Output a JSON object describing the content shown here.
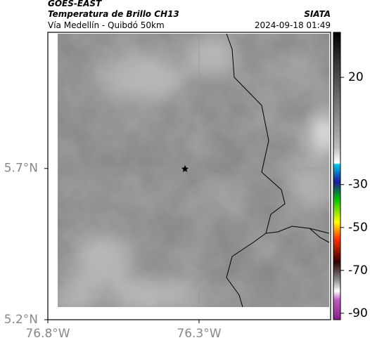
{
  "header": {
    "title": "GOES-EAST",
    "subtitle": "Temperatura de Brillo CH13",
    "route": "Vía Medellín - Quibdó 50km",
    "source": "SIATA",
    "timestamp": "2024-09-18 01:49"
  },
  "map": {
    "lat_range": [
      5.2,
      6.15
    ],
    "lon_range": [
      -76.8,
      -75.865
    ],
    "lat_ticks": [
      {
        "value": 5.7,
        "label": "5.7°N"
      },
      {
        "value": 5.2,
        "label": "5.2°N"
      }
    ],
    "lon_ticks": [
      {
        "value": -76.8,
        "label": "76.8°W"
      },
      {
        "value": -76.3,
        "label": "76.3°W"
      }
    ]
  },
  "colorbar": {
    "range": [
      41,
      -93
    ],
    "ticks": [
      20,
      -30,
      -50,
      -70,
      -90
    ]
  }
}
